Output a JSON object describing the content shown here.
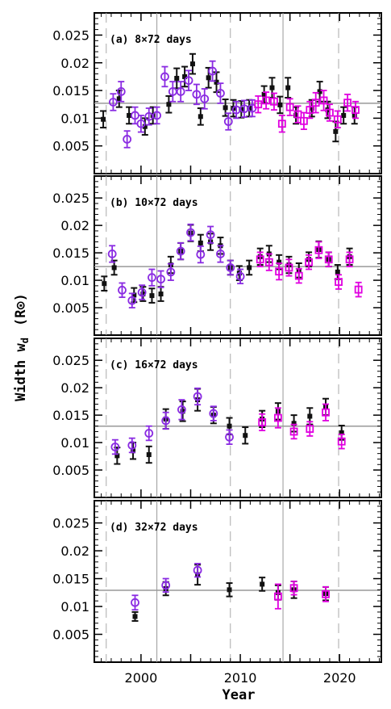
{
  "figure": {
    "ylabel": "Width w",
    "ylabel_sub": "d",
    "ylabel_unit": "(R⊙)",
    "xlabel": "Year"
  },
  "colors": {
    "black": "#111111",
    "purple": "#8a2be2",
    "magenta": "#e000e0",
    "ref_line": "#999999",
    "dashed_line": "#aaaaaa"
  },
  "chart_data": [
    {
      "type": "scatter",
      "label": "(a) 8×72 days",
      "xlim": [
        1995.3,
        2024.2
      ],
      "ylim": [
        0,
        0.029
      ],
      "yticks": [
        "0.005",
        "0.01",
        "0.015",
        "0.02",
        "0.025"
      ],
      "xticks": [
        "2000",
        "2010",
        "2020"
      ],
      "reference_y": 0.0127,
      "series": [
        {
          "marker": "filled-square",
          "color": "black",
          "points": [
            [
              1996.2,
              0.0098,
              0.0015
            ],
            [
              1997.8,
              0.0135,
              0.0015
            ],
            [
              1998.8,
              0.0105,
              0.0015
            ],
            [
              2000.4,
              0.0085,
              0.0015
            ],
            [
              2001.2,
              0.0105,
              0.0015
            ],
            [
              2002.8,
              0.0125,
              0.0015
            ],
            [
              2003.6,
              0.0172,
              0.0018
            ],
            [
              2004.4,
              0.0175,
              0.0018
            ],
            [
              2005.2,
              0.0198,
              0.0018
            ],
            [
              2006.0,
              0.0103,
              0.0015
            ],
            [
              2006.8,
              0.0173,
              0.0018
            ],
            [
              2007.6,
              0.0165,
              0.0018
            ],
            [
              2008.5,
              0.0119,
              0.0015
            ],
            [
              2009.3,
              0.0118,
              0.0015
            ],
            [
              2010.1,
              0.0116,
              0.0015
            ],
            [
              2010.9,
              0.0118,
              0.0015
            ],
            [
              2012.4,
              0.0143,
              0.0015
            ],
            [
              2013.2,
              0.0155,
              0.0018
            ],
            [
              2014.0,
              0.0124,
              0.0015
            ],
            [
              2014.8,
              0.0155,
              0.0018
            ],
            [
              2015.6,
              0.0105,
              0.0015
            ],
            [
              2017.2,
              0.0118,
              0.0015
            ],
            [
              2018.0,
              0.0148,
              0.0018
            ],
            [
              2018.8,
              0.0115,
              0.0015
            ],
            [
              2019.6,
              0.0076,
              0.0018
            ],
            [
              2020.4,
              0.0105,
              0.0015
            ],
            [
              2021.5,
              0.0105,
              0.0015
            ]
          ]
        },
        {
          "marker": "open-circle",
          "color": "purple",
          "points": [
            [
              1997.2,
              0.0129,
              0.0015
            ],
            [
              1998.0,
              0.0148,
              0.0018
            ],
            [
              1998.6,
              0.0062,
              0.0015
            ],
            [
              1999.4,
              0.0105,
              0.0015
            ],
            [
              2000.0,
              0.009,
              0.0015
            ],
            [
              2000.8,
              0.0103,
              0.0015
            ],
            [
              2001.6,
              0.0105,
              0.0015
            ],
            [
              2002.4,
              0.0175,
              0.0018
            ],
            [
              2003.2,
              0.0148,
              0.0018
            ],
            [
              2004.0,
              0.0148,
              0.0018
            ],
            [
              2004.8,
              0.0168,
              0.0018
            ],
            [
              2005.6,
              0.0143,
              0.0018
            ],
            [
              2006.4,
              0.0135,
              0.0018
            ],
            [
              2007.2,
              0.0185,
              0.0018
            ],
            [
              2008.0,
              0.0145,
              0.0018
            ],
            [
              2008.8,
              0.0094,
              0.0015
            ],
            [
              2009.6,
              0.0115,
              0.0015
            ],
            [
              2010.4,
              0.0117,
              0.0015
            ],
            [
              2011.2,
              0.0118,
              0.0015
            ]
          ]
        },
        {
          "marker": "open-square",
          "color": "magenta",
          "points": [
            [
              2011.8,
              0.0125,
              0.0015
            ],
            [
              2012.6,
              0.0132,
              0.0015
            ],
            [
              2013.4,
              0.013,
              0.0015
            ],
            [
              2014.2,
              0.009,
              0.0015
            ],
            [
              2015.0,
              0.012,
              0.0015
            ],
            [
              2015.8,
              0.0107,
              0.0015
            ],
            [
              2016.4,
              0.0095,
              0.0015
            ],
            [
              2017.0,
              0.0115,
              0.0015
            ],
            [
              2017.6,
              0.0128,
              0.0018
            ],
            [
              2018.4,
              0.0132,
              0.0018
            ],
            [
              2019.0,
              0.011,
              0.0015
            ],
            [
              2019.8,
              0.0098,
              0.0015
            ],
            [
              2020.8,
              0.0128,
              0.0015
            ],
            [
              2021.6,
              0.0115,
              0.0015
            ]
          ]
        }
      ]
    },
    {
      "type": "scatter",
      "label": "(b) 10×72 days",
      "xlim": [
        1995.3,
        2024.2
      ],
      "ylim": [
        0,
        0.029
      ],
      "yticks": [
        "0.005",
        "0.01",
        "0.015",
        "0.02",
        "0.025"
      ],
      "xticks": [
        "2000",
        "2010",
        "2020"
      ],
      "reference_y": 0.0125,
      "series": [
        {
          "marker": "filled-square",
          "color": "black",
          "points": [
            [
              1996.3,
              0.0094,
              0.0013
            ],
            [
              1997.3,
              0.0123,
              0.0013
            ],
            [
              1999.3,
              0.0073,
              0.0013
            ],
            [
              2000.2,
              0.0075,
              0.0013
            ],
            [
              2001.1,
              0.0072,
              0.0013
            ],
            [
              2002.0,
              0.0075,
              0.0013
            ],
            [
              2003.0,
              0.0128,
              0.0015
            ],
            [
              2004.0,
              0.0153,
              0.0015
            ],
            [
              2005.0,
              0.0186,
              0.0015
            ],
            [
              2006.0,
              0.0168,
              0.0015
            ],
            [
              2007.0,
              0.017,
              0.0015
            ],
            [
              2008.0,
              0.0163,
              0.0015
            ],
            [
              2009.0,
              0.0123,
              0.0013
            ],
            [
              2009.9,
              0.0113,
              0.0013
            ],
            [
              2010.9,
              0.0123,
              0.0013
            ],
            [
              2012.0,
              0.0143,
              0.0015
            ],
            [
              2012.9,
              0.0148,
              0.0015
            ],
            [
              2013.9,
              0.0133,
              0.0013
            ],
            [
              2014.9,
              0.0128,
              0.0015
            ],
            [
              2015.9,
              0.0118,
              0.0013
            ],
            [
              2016.9,
              0.0138,
              0.0013
            ],
            [
              2017.9,
              0.0156,
              0.0015
            ],
            [
              2018.9,
              0.0138,
              0.0013
            ],
            [
              2019.8,
              0.0115,
              0.0013
            ],
            [
              2021.0,
              0.0143,
              0.0015
            ]
          ]
        },
        {
          "marker": "open-circle",
          "color": "purple",
          "points": [
            [
              1997.1,
              0.0148,
              0.0015
            ],
            [
              1998.1,
              0.0082,
              0.0013
            ],
            [
              1999.1,
              0.0063,
              0.0013
            ],
            [
              2000.1,
              0.0078,
              0.0013
            ],
            [
              2001.1,
              0.0105,
              0.0015
            ],
            [
              2002.0,
              0.0102,
              0.0015
            ],
            [
              2003.0,
              0.0115,
              0.0015
            ],
            [
              2004.0,
              0.0153,
              0.0015
            ],
            [
              2005.0,
              0.0187,
              0.0015
            ],
            [
              2006.0,
              0.0147,
              0.0015
            ],
            [
              2007.0,
              0.0183,
              0.0015
            ],
            [
              2008.0,
              0.0148,
              0.0015
            ],
            [
              2009.0,
              0.0123,
              0.0013
            ],
            [
              2010.0,
              0.0107,
              0.0013
            ]
          ]
        },
        {
          "marker": "open-square",
          "color": "magenta",
          "points": [
            [
              2012.0,
              0.0138,
              0.0013
            ],
            [
              2012.9,
              0.0133,
              0.0015
            ],
            [
              2013.9,
              0.0116,
              0.0015
            ],
            [
              2014.9,
              0.0123,
              0.0015
            ],
            [
              2015.9,
              0.0108,
              0.0013
            ],
            [
              2016.9,
              0.0133,
              0.0013
            ],
            [
              2017.9,
              0.0155,
              0.0015
            ],
            [
              2018.9,
              0.0138,
              0.0013
            ],
            [
              2019.9,
              0.0097,
              0.0013
            ],
            [
              2021.0,
              0.0138,
              0.0013
            ],
            [
              2021.9,
              0.0083,
              0.0013
            ]
          ]
        }
      ]
    },
    {
      "type": "scatter",
      "label": "(c) 16×72 days",
      "xlim": [
        1995.3,
        2024.2
      ],
      "ylim": [
        0,
        0.029
      ],
      "yticks": [
        "0.005",
        "0.01",
        "0.015",
        "0.02",
        "0.025"
      ],
      "xticks": [
        "2000",
        "2010",
        "2020"
      ],
      "reference_y": 0.013,
      "series": [
        {
          "marker": "filled-square",
          "color": "black",
          "points": [
            [
              1997.6,
              0.0076,
              0.0015
            ],
            [
              1999.2,
              0.0085,
              0.0015
            ],
            [
              2000.8,
              0.0078,
              0.0015
            ],
            [
              2002.5,
              0.0143,
              0.0018
            ],
            [
              2004.2,
              0.0157,
              0.0018
            ],
            [
              2005.7,
              0.0178,
              0.002
            ],
            [
              2007.3,
              0.015,
              0.0015
            ],
            [
              2008.9,
              0.013,
              0.0015
            ],
            [
              2010.5,
              0.0113,
              0.0015
            ],
            [
              2012.2,
              0.0143,
              0.0015
            ],
            [
              2013.8,
              0.0157,
              0.0015
            ],
            [
              2015.4,
              0.0135,
              0.0015
            ],
            [
              2017.0,
              0.0148,
              0.0015
            ],
            [
              2018.6,
              0.0165,
              0.0015
            ],
            [
              2020.2,
              0.0118,
              0.0013
            ]
          ]
        },
        {
          "marker": "open-circle",
          "color": "purple",
          "points": [
            [
              1997.4,
              0.0092,
              0.0013
            ],
            [
              1999.1,
              0.0095,
              0.0013
            ],
            [
              2000.8,
              0.0117,
              0.0013
            ],
            [
              2002.5,
              0.014,
              0.0015
            ],
            [
              2004.1,
              0.016,
              0.0018
            ],
            [
              2005.7,
              0.0184,
              0.0015
            ],
            [
              2007.3,
              0.0153,
              0.0013
            ],
            [
              2008.9,
              0.011,
              0.0013
            ]
          ]
        },
        {
          "marker": "open-square",
          "color": "magenta",
          "points": [
            [
              2012.2,
              0.0137,
              0.0015
            ],
            [
              2013.8,
              0.0145,
              0.0018
            ],
            [
              2015.4,
              0.012,
              0.0013
            ],
            [
              2017.0,
              0.0125,
              0.0013
            ],
            [
              2018.6,
              0.0155,
              0.0015
            ],
            [
              2020.2,
              0.0102,
              0.0013
            ]
          ]
        }
      ]
    },
    {
      "type": "scatter",
      "label": "(d) 32×72 days",
      "xlim": [
        1995.3,
        2024.2
      ],
      "ylim": [
        0,
        0.029
      ],
      "yticks": [
        "0.005",
        "0.01",
        "0.015",
        "0.02",
        "0.025"
      ],
      "xticks": [
        "2000",
        "2010",
        "2020"
      ],
      "reference_y": 0.0129,
      "series": [
        {
          "marker": "filled-square",
          "color": "black",
          "points": [
            [
              1999.4,
              0.0082,
              0.0008
            ],
            [
              2002.5,
              0.0132,
              0.0012
            ],
            [
              2005.7,
              0.0157,
              0.0018
            ],
            [
              2008.9,
              0.013,
              0.0012
            ],
            [
              2012.2,
              0.014,
              0.0012
            ],
            [
              2013.8,
              0.0125,
              0.0013
            ],
            [
              2015.4,
              0.013,
              0.0015
            ],
            [
              2018.6,
              0.0123,
              0.0012
            ]
          ]
        },
        {
          "marker": "open-circle",
          "color": "purple",
          "points": [
            [
              1999.4,
              0.0107,
              0.0013
            ],
            [
              2002.5,
              0.0138,
              0.0012
            ],
            [
              2005.7,
              0.0165,
              0.0012
            ]
          ]
        },
        {
          "marker": "open-square",
          "color": "magenta",
          "points": [
            [
              2013.8,
              0.0118,
              0.0022
            ],
            [
              2015.4,
              0.0133,
              0.0012
            ],
            [
              2018.6,
              0.0122,
              0.0013
            ]
          ]
        }
      ]
    }
  ]
}
